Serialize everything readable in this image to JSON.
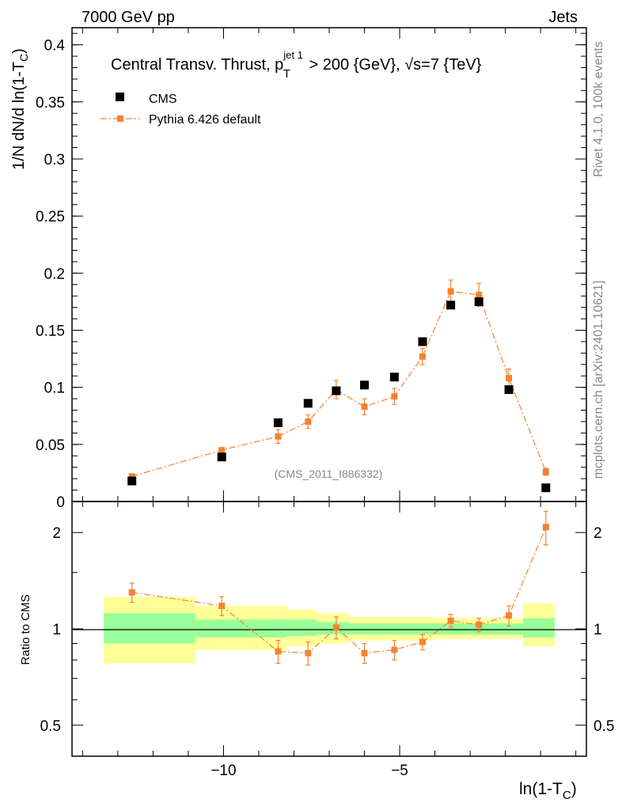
{
  "header": {
    "left": "7000 GeV pp",
    "right": "Jets"
  },
  "side": {
    "rivet": "Rivet 4.1.0,  100k events",
    "mcplots": "mcplots.cern.ch [arXiv:2401.10621]"
  },
  "colors": {
    "cms": "#000000",
    "pythia": "#f58231",
    "band_outer": "#ffff99",
    "band_inner": "#99ff99"
  },
  "chart_data": [
    {
      "type": "scatter",
      "title_parts": {
        "pre": "Central Transv. Thrust, p",
        "sub": "T",
        "sup": "jet 1",
        "post": " > 200 {GeV}, √s=7 {TeV}"
      },
      "watermark": "(CMS_2011_I886332)",
      "ylabel_parts": {
        "pre": "1/N   dN/d ln(1-T",
        "sub": "C",
        "post": ")"
      },
      "ylim": [
        0,
        0.415
      ],
      "yticks": [
        0,
        0.05,
        0.1,
        0.15,
        0.2,
        0.25,
        0.3,
        0.35,
        0.4
      ],
      "ytick_labels": [
        "0",
        "0.05",
        "0.1",
        "0.15",
        "0.2",
        "0.25",
        "0.3",
        "0.35",
        "0.4"
      ],
      "legend": {
        "position": "top-left",
        "entries": [
          "CMS",
          "Pythia 6.426 default"
        ]
      },
      "series": [
        {
          "name": "CMS",
          "marker": "square",
          "x": [
            -12.6,
            -10.05,
            -8.45,
            -7.6,
            -6.8,
            -6.0,
            -5.15,
            -4.35,
            -3.55,
            -2.75,
            -1.9,
            -0.85
          ],
          "y": [
            0.018,
            0.039,
            0.069,
            0.086,
            0.097,
            0.102,
            0.109,
            0.14,
            0.172,
            0.175,
            0.098,
            0.012
          ]
        },
        {
          "name": "Pythia 6.426 default",
          "marker": "square-dashdot",
          "x": [
            -12.6,
            -10.05,
            -8.45,
            -7.6,
            -6.8,
            -6.0,
            -5.15,
            -4.35,
            -3.55,
            -2.75,
            -1.9,
            -0.85
          ],
          "y": [
            0.022,
            0.045,
            0.057,
            0.07,
            0.098,
            0.083,
            0.092,
            0.127,
            0.184,
            0.181,
            0.108,
            0.026
          ],
          "yerr": [
            0.002,
            0.002,
            0.006,
            0.006,
            0.008,
            0.007,
            0.007,
            0.007,
            0.01,
            0.01,
            0.008,
            0.003
          ]
        }
      ]
    },
    {
      "type": "line",
      "ylabel": "Ratio to CMS",
      "xlabel_parts": {
        "pre": "ln(1-T",
        "sub": "C",
        "post": ")"
      },
      "yscale": "log",
      "ylim": [
        0.4,
        2.5
      ],
      "yticks": [
        0.5,
        1,
        2
      ],
      "ytick_labels": [
        "0.5",
        "1",
        "2"
      ],
      "xlim": [
        -14.3,
        0.3
      ],
      "xticks": [
        -10,
        -5
      ],
      "xtick_labels": [
        "−10",
        "−5"
      ],
      "bands": [
        {
          "x0": -13.4,
          "x1": -10.8,
          "outer": [
            0.78,
            1.26
          ],
          "inner": [
            0.9,
            1.12
          ]
        },
        {
          "x0": -10.8,
          "x1": -8.2,
          "outer": [
            0.86,
            1.18
          ],
          "inner": [
            0.94,
            1.07
          ]
        },
        {
          "x0": -8.2,
          "x1": -7.35,
          "outer": [
            0.88,
            1.15
          ],
          "inner": [
            0.95,
            1.07
          ]
        },
        {
          "x0": -7.35,
          "x1": -6.45,
          "outer": [
            0.9,
            1.12
          ],
          "inner": [
            0.96,
            1.05
          ]
        },
        {
          "x0": -6.45,
          "x1": -4.0,
          "outer": [
            0.92,
            1.09
          ],
          "inner": [
            0.96,
            1.04
          ]
        },
        {
          "x0": -4.0,
          "x1": -1.5,
          "outer": [
            0.93,
            1.08
          ],
          "inner": [
            0.96,
            1.04
          ]
        },
        {
          "x0": -1.5,
          "x1": -0.6,
          "outer": [
            0.88,
            1.2
          ],
          "inner": [
            0.94,
            1.08
          ]
        }
      ],
      "series": [
        {
          "name": "Pythia 6.426 default",
          "x": [
            -12.6,
            -10.05,
            -8.45,
            -7.6,
            -6.8,
            -6.0,
            -5.15,
            -4.35,
            -3.55,
            -2.75,
            -1.9,
            -0.85
          ],
          "y": [
            1.3,
            1.18,
            0.85,
            0.84,
            1.01,
            0.84,
            0.86,
            0.91,
            1.06,
            1.03,
            1.1,
            2.08
          ],
          "yerr": [
            0.09,
            0.08,
            0.07,
            0.07,
            0.08,
            0.06,
            0.06,
            0.05,
            0.05,
            0.05,
            0.08,
            0.25
          ]
        }
      ]
    }
  ]
}
